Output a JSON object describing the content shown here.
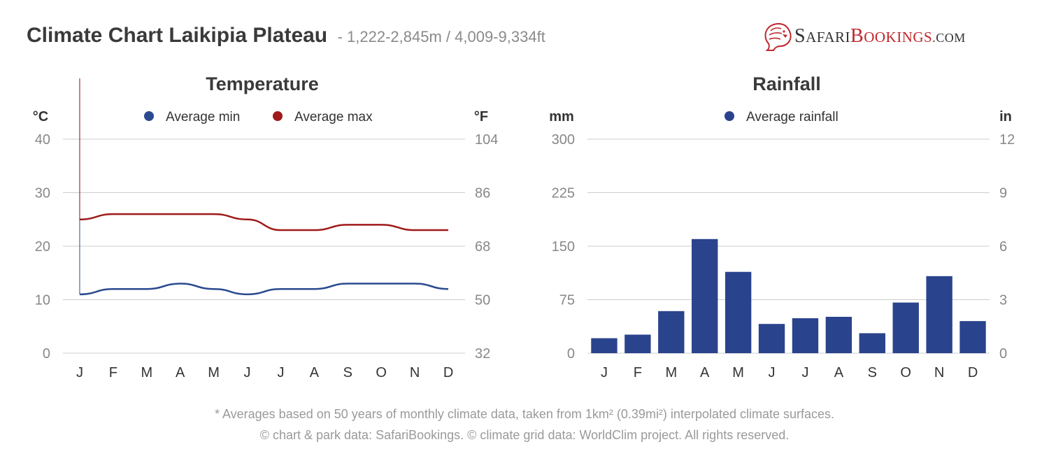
{
  "header": {
    "title": "Climate Chart Laikipia Plateau",
    "subtitle": "- 1,222-2,845m / 4,009-9,334ft"
  },
  "logo": {
    "part1_big": "S",
    "part1_small": "AFARI",
    "part2_big": "B",
    "part2_small": "OOKINGS",
    "suffix": ".COM"
  },
  "colors": {
    "avg_min": "#2b4a8f",
    "avg_max": "#a01a1a",
    "rain": "#2a438d",
    "grid": "#cccccc",
    "tick": "#888888",
    "logo_red": "#c0272d"
  },
  "chart_data": [
    {
      "type": "line",
      "title": "Temperature",
      "y_left_unit": "°C",
      "y_right_unit": "°F",
      "categories": [
        "J",
        "F",
        "M",
        "A",
        "M",
        "J",
        "J",
        "A",
        "S",
        "O",
        "N",
        "D"
      ],
      "ylim": [
        0,
        40
      ],
      "y_left_ticks": [
        0,
        10,
        20,
        30,
        40
      ],
      "y_right_ticks": [
        32,
        50,
        68,
        86,
        104
      ],
      "grid": true,
      "legend_position": "top-center",
      "series": [
        {
          "name": "Average min",
          "color": "#2b4a8f",
          "values": [
            11,
            12,
            12,
            13,
            12,
            11,
            12,
            12,
            13,
            13,
            13,
            12
          ]
        },
        {
          "name": "Average max",
          "color": "#a01a1a",
          "values": [
            25,
            26,
            26,
            26,
            26,
            25,
            23,
            23,
            24,
            24,
            23,
            23
          ]
        }
      ]
    },
    {
      "type": "bar",
      "title": "Rainfall",
      "y_left_unit": "mm",
      "y_right_unit": "in",
      "categories": [
        "J",
        "F",
        "M",
        "A",
        "M",
        "J",
        "J",
        "A",
        "S",
        "O",
        "N",
        "D"
      ],
      "ylim": [
        0,
        300
      ],
      "y_left_ticks": [
        0,
        75,
        150,
        225,
        300
      ],
      "y_right_ticks": [
        0,
        3,
        6,
        9,
        12
      ],
      "grid": true,
      "legend_position": "top-center",
      "series": [
        {
          "name": "Average rainfall",
          "color": "#2a438d",
          "values": [
            21,
            26,
            59,
            160,
            114,
            41,
            49,
            51,
            28,
            71,
            108,
            45
          ]
        }
      ]
    }
  ],
  "footer": {
    "note": "* Averages based on 50 years of monthly climate data, taken from 1km² (0.39mi²) interpolated climate surfaces.",
    "credits": "© chart & park data: SafariBookings. © climate grid data: WorldClim project. All rights reserved."
  }
}
